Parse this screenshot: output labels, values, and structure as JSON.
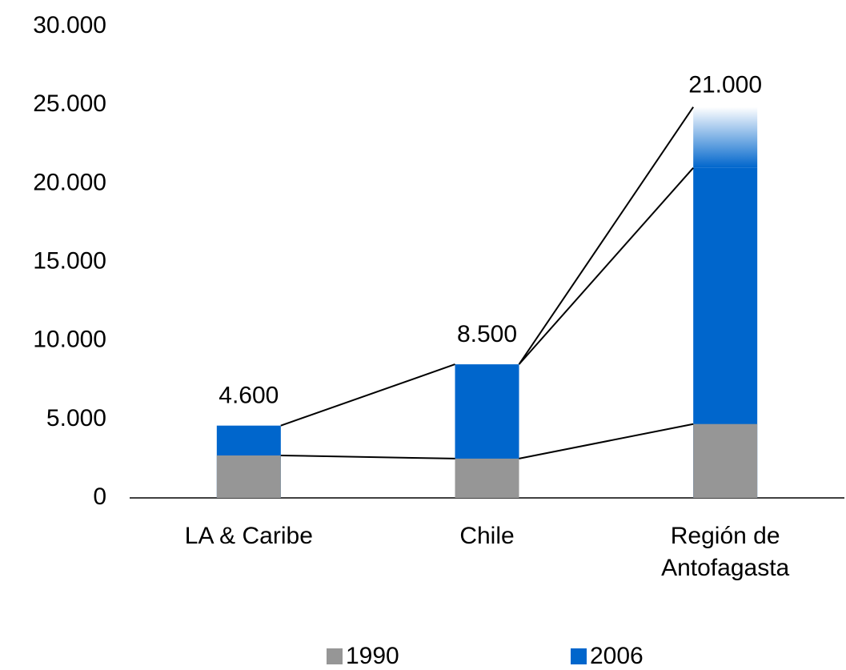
{
  "chart_data": {
    "type": "bar",
    "categories": [
      "LA & Caribe",
      "Chile",
      "Región de Antofagasta"
    ],
    "series": [
      {
        "name": "1990",
        "color": "#969696",
        "values": [
          2700,
          2500,
          4700
        ]
      },
      {
        "name": "2006",
        "color": "#0066cc",
        "values": [
          4600,
          8500,
          21000
        ],
        "value_labels": [
          "4.600",
          "8.500",
          "21.000"
        ]
      }
    ],
    "ylim": [
      0,
      30000
    ],
    "yticks": [
      0,
      {
        "value": 5000,
        "label": "5.000"
      },
      {
        "value": 10000,
        "label": "10.000"
      },
      {
        "value": 15000,
        "label": "15.000"
      },
      {
        "value": 20000,
        "label": "20.000"
      },
      {
        "value": 25000,
        "label": "25.000"
      },
      {
        "value": 30000,
        "label": "30.000"
      }
    ],
    "legend": "bottom"
  }
}
